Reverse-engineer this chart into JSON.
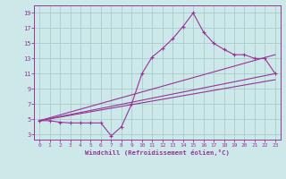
{
  "xlabel": "Windchill (Refroidissement éolien,°C)",
  "bg_color": "#cce8e8",
  "grid_color": "#aacccc",
  "line_color": "#993399",
  "xlim": [
    -0.5,
    23.5
  ],
  "ylim": [
    2.3,
    20.0
  ],
  "yticks": [
    3,
    5,
    7,
    9,
    11,
    13,
    15,
    17,
    19
  ],
  "xticks": [
    0,
    1,
    2,
    3,
    4,
    5,
    6,
    7,
    8,
    9,
    10,
    11,
    12,
    13,
    14,
    15,
    16,
    17,
    18,
    19,
    20,
    21,
    22,
    23
  ],
  "series1_x": [
    0,
    1,
    2,
    3,
    4,
    5,
    6,
    7,
    8,
    9,
    10,
    11,
    12,
    13,
    14,
    15,
    16,
    17,
    18,
    19,
    20,
    21,
    22,
    23
  ],
  "series1_y": [
    4.8,
    4.8,
    4.6,
    4.5,
    4.5,
    4.5,
    4.5,
    2.8,
    4.0,
    7.0,
    11.0,
    13.2,
    14.3,
    15.6,
    17.2,
    19.0,
    16.5,
    15.0,
    14.2,
    13.5,
    13.5,
    13.0,
    13.0,
    11.0
  ],
  "line1_x": [
    0,
    23
  ],
  "line1_y": [
    4.8,
    13.5
  ],
  "line2_x": [
    0,
    23
  ],
  "line2_y": [
    4.8,
    11.0
  ],
  "line3_x": [
    0,
    23
  ],
  "line3_y": [
    4.8,
    10.2
  ],
  "figwidth": 3.2,
  "figheight": 2.0,
  "dpi": 100
}
